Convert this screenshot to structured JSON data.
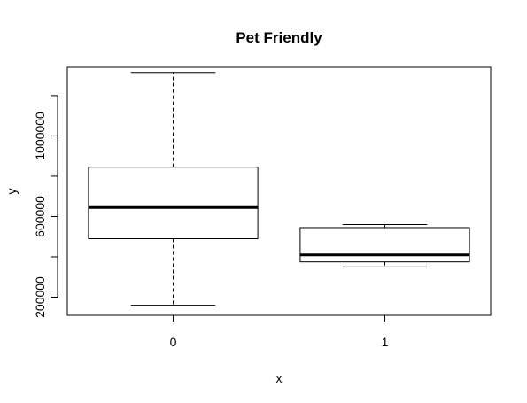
{
  "chart_data": {
    "type": "boxplot",
    "title": "Pet Friendly",
    "xlabel": "x",
    "ylabel": "y",
    "categories": [
      "0",
      "1"
    ],
    "ylim": [
      110000,
      1340000
    ],
    "y_ticks": [
      200000,
      400000,
      600000,
      800000,
      1000000,
      1200000
    ],
    "y_tick_labels": [
      "200000",
      "",
      "600000",
      "",
      "1000000",
      ""
    ],
    "boxes": [
      {
        "category": "0",
        "whisker_low": 160000,
        "q1": 490000,
        "median": 645000,
        "q3": 845000,
        "whisker_high": 1315000
      },
      {
        "category": "1",
        "whisker_low": 350000,
        "q1": 375000,
        "median": 410000,
        "q3": 545000,
        "whisker_high": 560000
      }
    ],
    "grid": false,
    "legend": "none"
  }
}
